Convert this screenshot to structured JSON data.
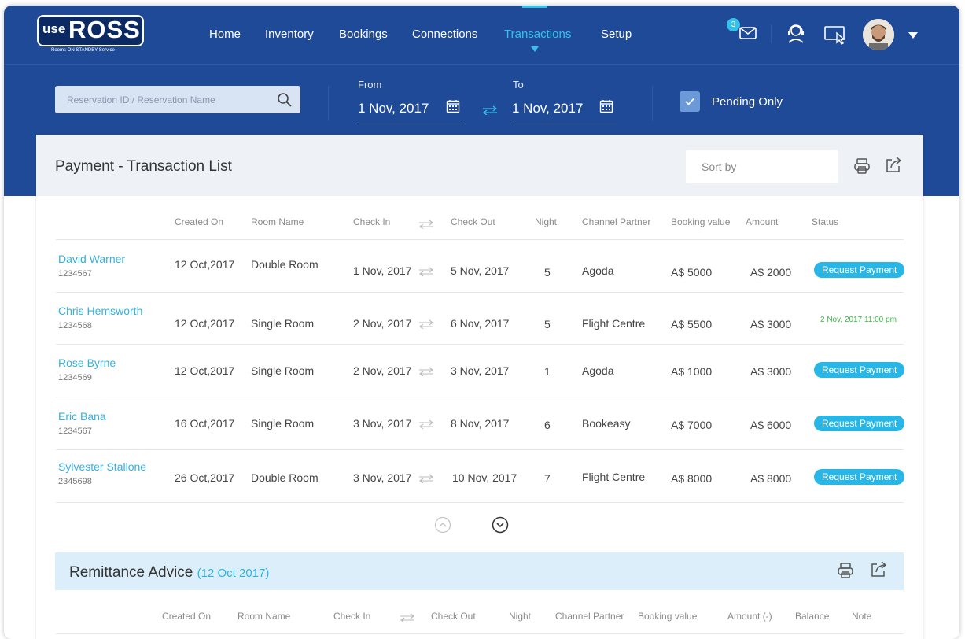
{
  "brand": {
    "use": "use",
    "name": "ROSS",
    "tagline": "Rooms ON STANDBY Service"
  },
  "nav": {
    "items": [
      {
        "label": "Home"
      },
      {
        "label": "Inventory"
      },
      {
        "label": "Bookings"
      },
      {
        "label": "Connections"
      },
      {
        "label": "Transactions"
      },
      {
        "label": "Setup"
      }
    ],
    "active": "Transactions",
    "mail_count": "3"
  },
  "filters": {
    "search_placeholder": "Reservation ID / Reservation Name",
    "from_label": "From",
    "from_value": "1 Nov, 2017",
    "to_label": "To",
    "to_value": "1 Nov, 2017",
    "pending_label": "Pending Only",
    "pending_checked": true
  },
  "transactions": {
    "title": "Payment - Transaction List",
    "sort_placeholder": "Sort by",
    "columns": {
      "created_on": "Created On",
      "room_name": "Room Name",
      "check_in": "Check In",
      "check_out": "Check Out",
      "night": "Night",
      "channel_partner": "Channel Partner",
      "booking_value": "Booking value",
      "amount": "Amount",
      "status": "Status"
    },
    "rows": [
      {
        "name": "David Warner",
        "id": "1234567",
        "created_on": "12 Oct,2017",
        "room": "Double  Room",
        "check_in": "1 Nov, 2017",
        "check_out": "5 Nov, 2017",
        "night": "5",
        "partner": "Agoda",
        "booking_value": "A$ 5000",
        "amount": "A$ 2000",
        "status": "Request Payment"
      },
      {
        "name": "Chris Hemsworth",
        "id": "1234568",
        "created_on": "12 Oct,2017",
        "room": "Single Room",
        "check_in": "2 Nov, 2017",
        "check_out": "6 Nov, 2017",
        "night": "5",
        "partner": "Flight Centre",
        "booking_value": "A$ 5500",
        "amount": "A$ 3000",
        "status": "2 Nov, 2017  11:00 pm"
      },
      {
        "name": "Rose Byrne",
        "id": "1234569",
        "created_on": "12 Oct,2017",
        "room": "Single Room",
        "check_in": "2 Nov, 2017",
        "check_out": "3 Nov, 2017",
        "night": "1",
        "partner": "Agoda",
        "booking_value": "A$ 1000",
        "amount": "A$ 3000",
        "status": "Request Payment"
      },
      {
        "name": "Eric Bana",
        "id": "1234567",
        "created_on": "16 Oct,2017",
        "room": "Single Room",
        "check_in": "3 Nov, 2017",
        "check_out": "8 Nov, 2017",
        "night": "6",
        "partner": "Bookeasy",
        "booking_value": "A$ 7000",
        "amount": "A$ 6000",
        "status": "Request Payment"
      },
      {
        "name": "Sylvester Stallone",
        "id": "2345698",
        "created_on": "26 Oct,2017",
        "room": "Double  Room",
        "check_in": "3 Nov, 2017",
        "check_out": "10 Nov, 2017",
        "night": "7",
        "partner": "Flight Centre",
        "booking_value": "A$ 8000",
        "amount": "A$ 8000",
        "status": "Request Payment"
      }
    ]
  },
  "remittance": {
    "title": "Remittance Advice",
    "date": "(12 Oct 2017)",
    "columns": {
      "created_on": "Created On",
      "room_name": "Room Name",
      "check_in": "Check In",
      "check_out": "Check Out",
      "night": "Night",
      "channel_partner": "Channel Partner",
      "booking_value": "Booking value",
      "amount": "Amount (-)",
      "balance": "Balance",
      "note": "Note"
    }
  },
  "colors": {
    "navy": "#1f4a98",
    "accent": "#35c1e8",
    "pill": "#27b6e6",
    "paid": "#3cb54a"
  },
  "icons": [
    "search-icon",
    "calendar-icon",
    "swap-arrows-icon",
    "mail-icon",
    "support-agent-icon",
    "screen-pointer-icon",
    "print-icon",
    "export-icon",
    "chevron-up-icon",
    "chevron-down-icon"
  ]
}
